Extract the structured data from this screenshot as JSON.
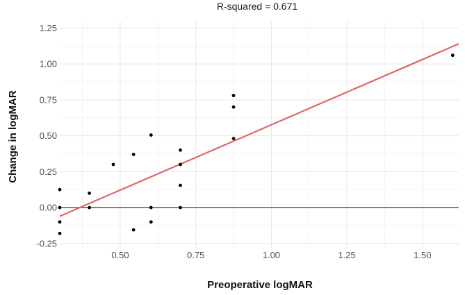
{
  "chart_data": {
    "type": "scatter",
    "title": "R-squared = 0.671",
    "xlabel": "Preoperative logMAR",
    "ylabel": "Change in logMAR",
    "xlim": [
      0.3,
      1.62
    ],
    "ylim": [
      -0.28,
      1.3
    ],
    "x_ticks": [
      0.5,
      0.75,
      1.0,
      1.25,
      1.5
    ],
    "x_tick_labels": [
      "0.50",
      "0.75",
      "1.00",
      "1.25",
      "1.50"
    ],
    "y_ticks": [
      -0.25,
      0.0,
      0.25,
      0.5,
      0.75,
      1.0,
      1.25
    ],
    "y_tick_labels": [
      "-0.25",
      "0.00",
      "0.25",
      "0.50",
      "0.75",
      "1.00",
      "1.25"
    ],
    "grid": true,
    "reference_line": {
      "y": 0,
      "color": "#000000"
    },
    "points": [
      {
        "x": 0.3,
        "y": 0.125
      },
      {
        "x": 0.3,
        "y": 0.0
      },
      {
        "x": 0.3,
        "y": -0.1
      },
      {
        "x": 0.3,
        "y": -0.18
      },
      {
        "x": 0.398,
        "y": 0.1
      },
      {
        "x": 0.398,
        "y": 0.0
      },
      {
        "x": 0.477,
        "y": 0.3
      },
      {
        "x": 0.544,
        "y": 0.37
      },
      {
        "x": 0.544,
        "y": -0.155
      },
      {
        "x": 0.602,
        "y": 0.505
      },
      {
        "x": 0.602,
        "y": 0.0
      },
      {
        "x": 0.602,
        "y": -0.1
      },
      {
        "x": 0.699,
        "y": 0.4
      },
      {
        "x": 0.699,
        "y": 0.3
      },
      {
        "x": 0.699,
        "y": 0.155
      },
      {
        "x": 0.699,
        "y": 0.0
      },
      {
        "x": 0.875,
        "y": 0.78
      },
      {
        "x": 0.875,
        "y": 0.7
      },
      {
        "x": 0.875,
        "y": 0.48
      },
      {
        "x": 1.6,
        "y": 1.06
      }
    ],
    "fit_line": {
      "x": [
        0.3,
        1.62
      ],
      "y": [
        -0.06,
        1.14
      ],
      "color": "#e06666"
    },
    "point_color": "#000000"
  }
}
